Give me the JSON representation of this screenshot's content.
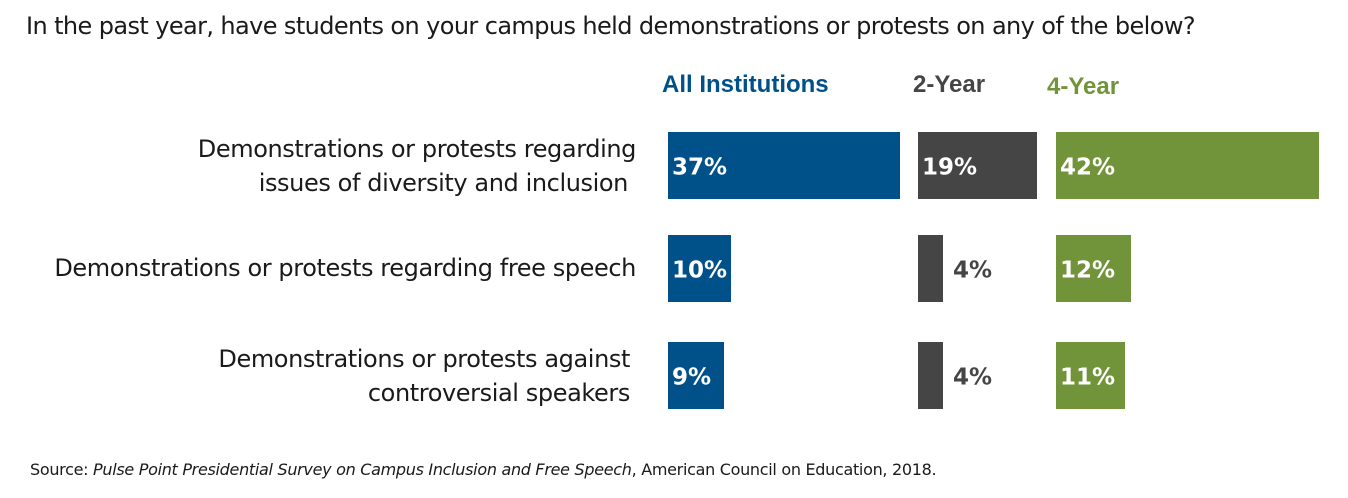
{
  "chart_data": {
    "type": "bar",
    "title": "In the past year, have students on your campus held demonstrations or protests on any of the below?",
    "categories": [
      "Demonstrations or protests regarding issues of diversity and inclusion",
      "Demonstrations or protests regarding free speech",
      "Demonstrations or protests against controversial speakers"
    ],
    "category_lines": [
      [
        "Demonstrations or protests regarding",
        "issues of diversity and inclusion"
      ],
      [
        "Demonstrations or protests regarding free speech"
      ],
      [
        "Demonstrations or protests against",
        "controversial speakers"
      ]
    ],
    "series": [
      {
        "name": "All Institutions",
        "color": "#00508a",
        "values": [
          37,
          10,
          9
        ],
        "labels": [
          "37%",
          "10%",
          "9%"
        ]
      },
      {
        "name": "2-Year",
        "color": "#454545",
        "values": [
          19,
          4,
          4
        ],
        "labels": [
          "19%",
          "4%",
          "4%"
        ]
      },
      {
        "name": "4-Year",
        "color": "#71943a",
        "values": [
          42,
          12,
          11
        ],
        "labels": [
          "42%",
          "12%",
          "11%"
        ]
      }
    ],
    "value_unit": "%",
    "legend_placement": "top",
    "grid": false
  },
  "source": {
    "prefix": "Source: ",
    "title": "Pulse Point Presidential Survey on Campus Inclusion and Free Speech",
    "suffix": ", American Council on Education, 2018."
  }
}
